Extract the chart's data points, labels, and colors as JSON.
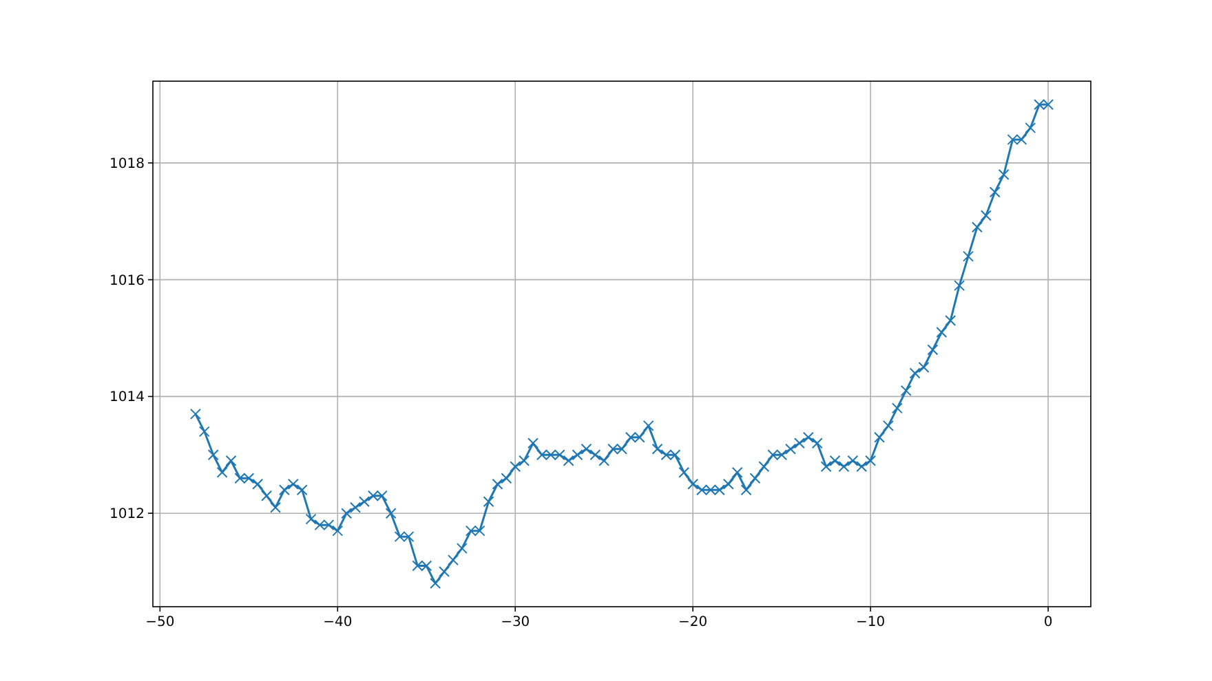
{
  "chart_data": {
    "type": "line",
    "x": [
      -48,
      -47.5,
      -47,
      -46.5,
      -46,
      -45.5,
      -45,
      -44.5,
      -44,
      -43.5,
      -43,
      -42.5,
      -42,
      -41.5,
      -41,
      -40.5,
      -40,
      -39.5,
      -39,
      -38.5,
      -38,
      -37.5,
      -37,
      -36.5,
      -36,
      -35.5,
      -35,
      -34.5,
      -34,
      -33.5,
      -33,
      -32.5,
      -32,
      -31.5,
      -31,
      -30.5,
      -30,
      -29.5,
      -29,
      -28.5,
      -28,
      -27.5,
      -27,
      -26.5,
      -26,
      -25.5,
      -25,
      -24.5,
      -24,
      -23.5,
      -23,
      -22.5,
      -22,
      -21.5,
      -21,
      -20.5,
      -20,
      -19.5,
      -19,
      -18.5,
      -18,
      -17.5,
      -17,
      -16.5,
      -16,
      -15.5,
      -15,
      -14.5,
      -14,
      -13.5,
      -13,
      -12.5,
      -12,
      -11.5,
      -11,
      -10.5,
      -10,
      -9.5,
      -9,
      -8.5,
      -8,
      -7.5,
      -7,
      -6.5,
      -6,
      -5.5,
      -5,
      -4.5,
      -4,
      -3.5,
      -3,
      -2.5,
      -2,
      -1.5,
      -1,
      -0.5,
      0
    ],
    "series": [
      {
        "color": "#1f77b4",
        "values": [
          1013.7,
          1013.4,
          1013.0,
          1012.7,
          1012.9,
          1012.6,
          1012.6,
          1012.5,
          1012.3,
          1012.1,
          1012.4,
          1012.5,
          1012.4,
          1011.9,
          1011.8,
          1011.8,
          1011.7,
          1012.0,
          1012.1,
          1012.2,
          1012.3,
          1012.3,
          1012.0,
          1011.6,
          1011.6,
          1011.1,
          1011.1,
          1010.8,
          1011.0,
          1011.2,
          1011.4,
          1011.7,
          1011.7,
          1012.2,
          1012.5,
          1012.6,
          1012.8,
          1012.9,
          1013.2,
          1013.0,
          1013.0,
          1013.0,
          1012.9,
          1013.0,
          1013.1,
          1013.0,
          1012.9,
          1013.1,
          1013.1,
          1013.3,
          1013.3,
          1013.5,
          1013.1,
          1013.0,
          1013.0,
          1012.7,
          1012.5,
          1012.4,
          1012.4,
          1012.4,
          1012.5,
          1012.7,
          1012.4,
          1012.6,
          1012.8,
          1013.0,
          1013.0,
          1013.1,
          1013.2,
          1013.3,
          1013.2,
          1012.8,
          1012.9,
          1012.8,
          1012.9,
          1012.8,
          1012.9,
          1013.3,
          1013.5,
          1013.8,
          1014.1,
          1014.4,
          1014.5,
          1014.8,
          1015.1,
          1015.3,
          1015.9,
          1016.4,
          1016.9,
          1017.1,
          1017.5,
          1017.8,
          1018.4,
          1018.4,
          1018.6,
          1019.0,
          1019.0
        ]
      }
    ],
    "xlim": [
      -50.4,
      2.4
    ],
    "xticks": [
      -50,
      -40,
      -30,
      -20,
      -10,
      0
    ],
    "ylim": [
      1010.4,
      1019.4
    ],
    "yticks": [
      1012,
      1014,
      1016,
      1018
    ],
    "grid": true,
    "marker": "cross",
    "line_style": "solid"
  }
}
